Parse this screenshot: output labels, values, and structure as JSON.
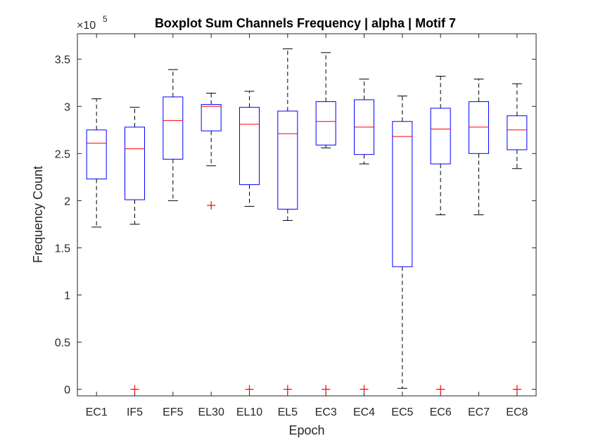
{
  "chart_data": {
    "type": "boxplot",
    "title": "Boxplot Sum Channels Frequency | alpha | Motif 7",
    "xlabel": "Epoch",
    "ylabel": "Frequency Count",
    "y_exponent_label": "×10",
    "y_exponent_power": "5",
    "y_scale": 100000,
    "ylim": [
      -0.07,
      3.77
    ],
    "yticks": [
      0,
      0.5,
      1,
      1.5,
      2,
      2.5,
      3,
      3.5
    ],
    "ytick_labels": [
      "0",
      "0.5",
      "1",
      "1.5",
      "2",
      "2.5",
      "3",
      "3.5"
    ],
    "grid": false,
    "colors": {
      "box": "#0000ff",
      "median": "#ff0000",
      "whisker": "#000000",
      "outlier": "#ff0000",
      "axis": "#262626"
    },
    "categories": [
      "EC1",
      "IF5",
      "EF5",
      "EL30",
      "EL10",
      "EL5",
      "EC3",
      "EC4",
      "EC5",
      "EC6",
      "EC7",
      "EC8"
    ],
    "boxes": [
      {
        "label": "EC1",
        "whisker_low": 1.72,
        "q1": 2.23,
        "median": 2.61,
        "q3": 2.75,
        "whisker_high": 3.08,
        "outliers": []
      },
      {
        "label": "IF5",
        "whisker_low": 1.75,
        "q1": 2.01,
        "median": 2.55,
        "q3": 2.78,
        "whisker_high": 2.99,
        "outliers": [
          0
        ]
      },
      {
        "label": "EF5",
        "whisker_low": 2.0,
        "q1": 2.44,
        "median": 2.85,
        "q3": 3.1,
        "whisker_high": 3.39,
        "outliers": []
      },
      {
        "label": "EL30",
        "whisker_low": 2.37,
        "q1": 2.74,
        "median": 3.0,
        "q3": 3.02,
        "whisker_high": 3.14,
        "outliers": [
          1.95
        ]
      },
      {
        "label": "EL10",
        "whisker_low": 1.94,
        "q1": 2.17,
        "median": 2.81,
        "q3": 2.99,
        "whisker_high": 3.16,
        "outliers": [
          0
        ]
      },
      {
        "label": "EL5",
        "whisker_low": 1.79,
        "q1": 1.91,
        "median": 2.71,
        "q3": 2.95,
        "whisker_high": 3.61,
        "outliers": [
          0
        ]
      },
      {
        "label": "EC3",
        "whisker_low": 2.56,
        "q1": 2.59,
        "median": 2.84,
        "q3": 3.05,
        "whisker_high": 3.57,
        "outliers": [
          0
        ]
      },
      {
        "label": "EC4",
        "whisker_low": 2.39,
        "q1": 2.49,
        "median": 2.78,
        "q3": 3.07,
        "whisker_high": 3.29,
        "outliers": [
          0
        ]
      },
      {
        "label": "EC5",
        "whisker_low": 0.01,
        "q1": 1.3,
        "median": 2.68,
        "q3": 2.84,
        "whisker_high": 3.11,
        "outliers": []
      },
      {
        "label": "EC6",
        "whisker_low": 1.85,
        "q1": 2.39,
        "median": 2.76,
        "q3": 2.98,
        "whisker_high": 3.32,
        "outliers": [
          0
        ]
      },
      {
        "label": "EC7",
        "whisker_low": 1.85,
        "q1": 2.5,
        "median": 2.78,
        "q3": 3.05,
        "whisker_high": 3.29,
        "outliers": []
      },
      {
        "label": "EC8",
        "whisker_low": 2.34,
        "q1": 2.54,
        "median": 2.75,
        "q3": 2.9,
        "whisker_high": 3.24,
        "outliers": [
          0
        ]
      }
    ]
  }
}
